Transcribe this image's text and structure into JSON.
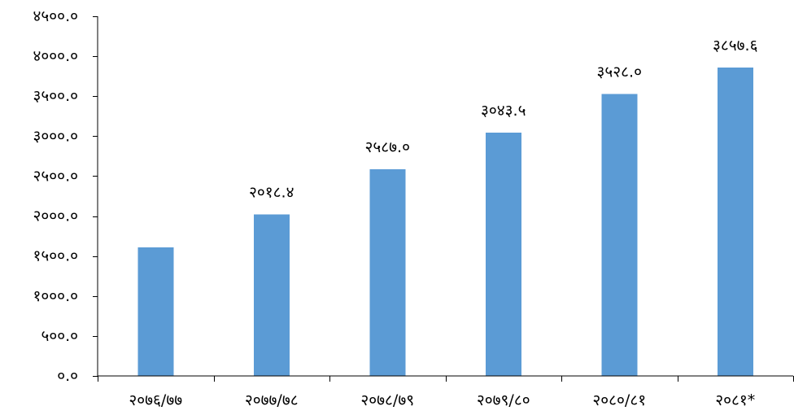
{
  "chart_data": {
    "type": "bar",
    "categories": [
      "२०७६/७७",
      "२०७७/७८",
      "२०७८/७९",
      "२०७९/८०",
      "२०८०/८१",
      "२०८१*"
    ],
    "values": [
      1610.0,
      2018.4,
      2587.0,
      3043.5,
      3528.0,
      3857.6
    ],
    "data_labels": [
      null,
      "२०१८.४",
      "२५८७.०",
      "३०४३.५",
      "३५२८.०",
      "३८५७.६"
    ],
    "ylim": [
      0,
      4500
    ],
    "y_ticks": [
      0,
      500,
      1000,
      1500,
      2000,
      2500,
      3000,
      3500,
      4000,
      4500
    ],
    "y_tick_labels": [
      "०.०",
      "५००.०",
      "१०००.०",
      "१५००.०",
      "२०००.०",
      "२५००.०",
      "३०००.०",
      "३५००.०",
      "४०००.०",
      "४५००.०"
    ],
    "grid": false,
    "legend": "none",
    "colors": {
      "bar": "#5B9BD5",
      "axis": "#000000",
      "text": "#000000"
    }
  }
}
